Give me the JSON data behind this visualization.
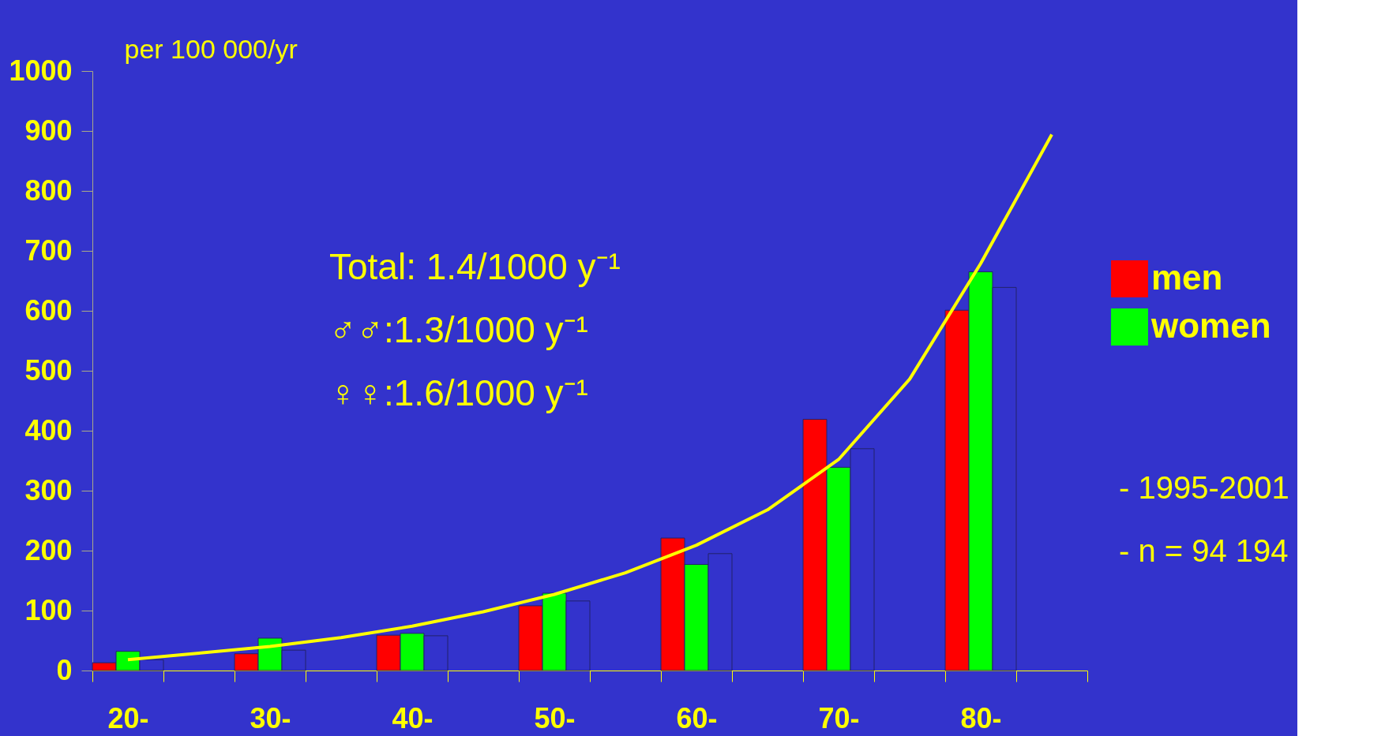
{
  "chart_data": {
    "type": "bar",
    "ylabel": "per 100 000/yr",
    "categories": [
      "20-",
      null,
      "30-",
      null,
      "40-",
      null,
      "50-",
      null,
      "60-",
      null,
      "70-",
      null,
      "80-",
      null
    ],
    "series": [
      {
        "name": "men",
        "color": "#ff0000",
        "values": [
          13,
          null,
          28,
          null,
          59,
          null,
          108,
          null,
          221,
          null,
          419,
          null,
          601,
          null
        ]
      },
      {
        "name": "women",
        "color": "#00ff00",
        "values": [
          32,
          null,
          54,
          null,
          62,
          null,
          129,
          null,
          177,
          null,
          339,
          null,
          665,
          null
        ]
      },
      {
        "color": "#3333cc",
        "values": [
          18,
          null,
          34,
          null,
          58,
          null,
          116,
          null,
          195,
          null,
          370,
          null,
          639,
          null
        ]
      },
      {
        "type": "line",
        "color": "#ffff00",
        "values": [
          18,
          29,
          40,
          55,
          74,
          98,
          127,
          163,
          209,
          268,
          352,
          486,
          679,
          894
        ]
      }
    ],
    "ylim": [
      0,
      1000
    ],
    "yticks": [
      0,
      100,
      200,
      300,
      400,
      500,
      600,
      700,
      800,
      900,
      1000
    ],
    "grid": false,
    "legend": "right",
    "annotations": [
      "Total:    1.4/1000 y⁻¹",
      "♂♂:1.3/1000 y⁻¹",
      "♀♀:1.6/1000 y⁻¹",
      "- 1995-2001",
      "- n = 94 194"
    ]
  }
}
